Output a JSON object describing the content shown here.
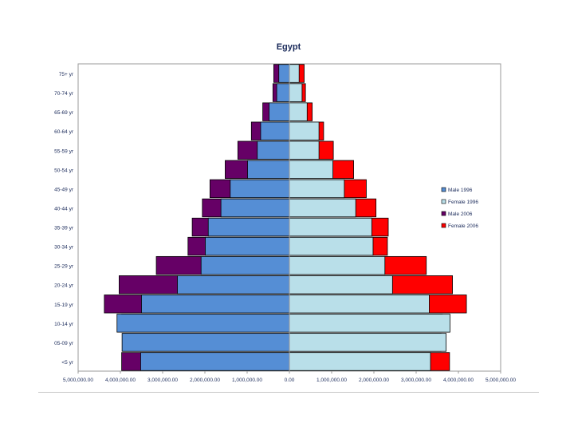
{
  "colors": {
    "male_1996": "#558ed5",
    "female_1996": "#b9dfe9",
    "male_2006": "#660066",
    "female_2006": "#ff0000",
    "gridline": "#9a9a9a",
    "text": "#1a2a5a"
  },
  "chart_data": {
    "type": "bar",
    "orientation": "horizontal",
    "title": "Egypt",
    "categories": [
      "75+ yr",
      "70-74 yr",
      "65-69 yr",
      "60-64 yr",
      "55-59 yr",
      "50-54 yr",
      "45-49 yr",
      "40-44 yr",
      "35-39 yr",
      "30-34 yr",
      "25-29 yr",
      "20-24 yr",
      "15-19 yr",
      "10-14 yr",
      "05-09 yr",
      "<5 yr"
    ],
    "x_ticks": [
      "5,000,000.00",
      "4,000,000.00",
      "3,000,000.00",
      "2,000,000.00",
      "1,000,000.00",
      "0.00",
      "1,000,000.00",
      "2,000,000.00",
      "3,000,000.00",
      "4,000,000.00",
      "5,000,000.00"
    ],
    "xlim": [
      -5000000,
      5000000
    ],
    "legend_position": "right",
    "series": [
      {
        "name": "Male 1996",
        "key": "male_1996",
        "values": [
          -250000,
          -300000,
          -480000,
          -680000,
          -760000,
          -990000,
          -1400000,
          -1620000,
          -1920000,
          -1990000,
          -2090000,
          -2650000,
          -3500000,
          -4080000,
          -3960000,
          -3520000
        ]
      },
      {
        "name": "Female 1996",
        "key": "female_1996",
        "values": [
          230000,
          300000,
          420000,
          700000,
          700000,
          1030000,
          1300000,
          1570000,
          1950000,
          1980000,
          2260000,
          2440000,
          3310000,
          3800000,
          3710000,
          3340000
        ]
      },
      {
        "name": "Male 2006",
        "key": "male_2006",
        "values": [
          -370000,
          -390000,
          -630000,
          -900000,
          -1220000,
          -1520000,
          -1880000,
          -2060000,
          -2300000,
          -2400000,
          -3150000,
          -4030000,
          -4380000,
          -3970000,
          -3940000,
          -3970000
        ]
      },
      {
        "name": "Female 2006",
        "key": "female_2006",
        "values": [
          350000,
          380000,
          540000,
          810000,
          1040000,
          1520000,
          1820000,
          2050000,
          2340000,
          2320000,
          3240000,
          3860000,
          4190000,
          3620000,
          3590000,
          3790000
        ]
      }
    ]
  }
}
